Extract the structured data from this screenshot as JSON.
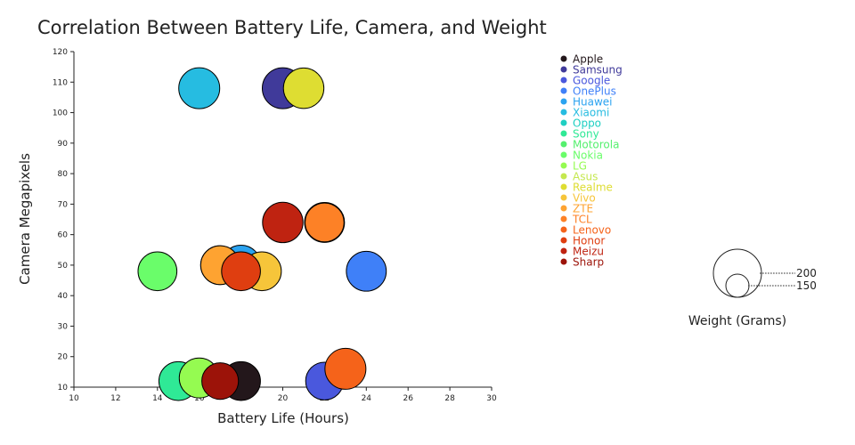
{
  "chart_data": {
    "type": "scatter",
    "title": "Correlation Between Battery Life, Camera, and Weight",
    "xlabel": "Battery Life (Hours)",
    "ylabel": "Camera Megapixels",
    "xlim": [
      10,
      30
    ],
    "ylim": [
      10,
      120
    ],
    "xticks": [
      "10",
      "12",
      "14",
      "16",
      "18",
      "20",
      "22",
      "24",
      "26",
      "28",
      "30"
    ],
    "yticks": [
      "10",
      "20",
      "30",
      "40",
      "50",
      "60",
      "70",
      "80",
      "90",
      "100",
      "110",
      "120"
    ],
    "grid": false,
    "legend_position": "top-right",
    "size_legend": {
      "title": "Weight (Grams)",
      "values": [
        200,
        150
      ],
      "labels": [
        "200",
        "150"
      ]
    },
    "series": [
      {
        "name": "Apple",
        "color": "#23171b",
        "x": 18,
        "y": 12,
        "weight": 180
      },
      {
        "name": "Samsung",
        "color": "#403a9a",
        "x": 20,
        "y": 108,
        "weight": 200
      },
      {
        "name": "Google",
        "color": "#4a58dd",
        "x": 22,
        "y": 12,
        "weight": 170
      },
      {
        "name": "OnePlus",
        "color": "#3f80f8",
        "x": 24,
        "y": 48,
        "weight": 190
      },
      {
        "name": "Huawei",
        "color": "#2ba3f0",
        "x": 18,
        "y": 50,
        "weight": 190
      },
      {
        "name": "Xiaomi",
        "color": "#26bce1",
        "x": 16,
        "y": 108,
        "weight": 200
      },
      {
        "name": "Oppo",
        "color": "#1fcfc2",
        "x": 22,
        "y": 64,
        "weight": 185
      },
      {
        "name": "Sony",
        "color": "#2fe996",
        "x": 15,
        "y": 12,
        "weight": 180
      },
      {
        "name": "Motorola",
        "color": "#55f06e",
        "x": 22,
        "y": 64,
        "weight": 190
      },
      {
        "name": "Nokia",
        "color": "#6afd6a",
        "x": 14,
        "y": 48,
        "weight": 180
      },
      {
        "name": "LG",
        "color": "#95fb51",
        "x": 16,
        "y": 13,
        "weight": 190
      },
      {
        "name": "Asus",
        "color": "#c5e84f",
        "x": 17,
        "y": 50,
        "weight": 180
      },
      {
        "name": "Realme",
        "color": "#dedd32",
        "x": 21,
        "y": 108,
        "weight": 195
      },
      {
        "name": "Vivo",
        "color": "#f6c53a",
        "x": 19,
        "y": 48,
        "weight": 180
      },
      {
        "name": "ZTE",
        "color": "#fea331",
        "x": 17,
        "y": 50,
        "weight": 180
      },
      {
        "name": "TCL",
        "color": "#fd8126",
        "x": 22,
        "y": 64,
        "weight": 180
      },
      {
        "name": "Lenovo",
        "color": "#f5631a",
        "x": 23,
        "y": 16,
        "weight": 200
      },
      {
        "name": "Honor",
        "color": "#df3e10",
        "x": 18,
        "y": 48,
        "weight": 180
      },
      {
        "name": "Meizu",
        "color": "#bf2311",
        "x": 20,
        "y": 64,
        "weight": 195
      },
      {
        "name": "Sharp",
        "color": "#9c1309",
        "x": 17,
        "y": 12,
        "weight": 160
      }
    ]
  }
}
